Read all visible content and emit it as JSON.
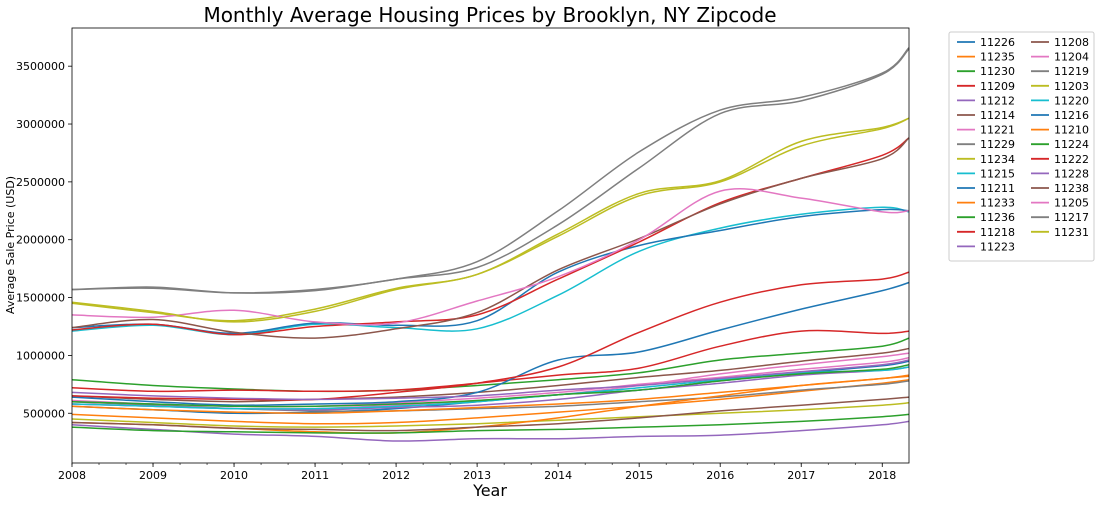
{
  "chart_data": {
    "type": "line",
    "title": "Monthly Average Housing Prices by Brooklyn, NY Zipcode",
    "xlabel": "Year",
    "ylabel": "Average Sale Price (USD)",
    "xlim": [
      2008.0,
      2018.33
    ],
    "ylim": [
      70000,
      3830000
    ],
    "x_ticks": [
      "2008",
      "2009",
      "2010",
      "2011",
      "2012",
      "2013",
      "2014",
      "2015",
      "2016",
      "2017",
      "2018"
    ],
    "y_ticks": [
      "500000",
      "1000000",
      "1500000",
      "2000000",
      "2500000",
      "3000000",
      "3500000"
    ],
    "grid": false,
    "legend_position": "outside-right",
    "series": [
      {
        "name": "11226",
        "color": "#1f77b4",
        "x": [
          2008,
          2009,
          2010,
          2011,
          2012,
          2013,
          2014,
          2015,
          2016,
          2017,
          2018,
          2018.33
        ],
        "values": [
          560000,
          530000,
          500000,
          510000,
          540000,
          600000,
          660000,
          700000,
          780000,
          850000,
          910000,
          950000
        ]
      },
      {
        "name": "11235",
        "color": "#ff7f0e",
        "x": [
          2008,
          2009,
          2010,
          2011,
          2012,
          2013,
          2014,
          2015,
          2016,
          2017,
          2018,
          2018.33
        ],
        "values": [
          490000,
          460000,
          430000,
          410000,
          420000,
          460000,
          510000,
          560000,
          620000,
          690000,
          760000,
          790000
        ]
      },
      {
        "name": "11230",
        "color": "#2ca02c",
        "x": [
          2008,
          2009,
          2010,
          2011,
          2012,
          2013,
          2014,
          2015,
          2016,
          2017,
          2018,
          2018.33
        ],
        "values": [
          790000,
          740000,
          710000,
          690000,
          700000,
          740000,
          790000,
          850000,
          960000,
          1020000,
          1080000,
          1150000
        ]
      },
      {
        "name": "11209",
        "color": "#d62728",
        "x": [
          2008,
          2009,
          2010,
          2011,
          2012,
          2013,
          2014,
          2015,
          2016,
          2017,
          2018,
          2018.33
        ],
        "values": [
          720000,
          690000,
          700000,
          690000,
          700000,
          760000,
          830000,
          890000,
          1080000,
          1210000,
          1190000,
          1210000
        ]
      },
      {
        "name": "11212",
        "color": "#9467bd",
        "x": [
          2008,
          2009,
          2010,
          2011,
          2012,
          2013,
          2014,
          2015,
          2016,
          2017,
          2018,
          2018.33
        ],
        "values": [
          400000,
          360000,
          320000,
          300000,
          260000,
          280000,
          280000,
          300000,
          310000,
          350000,
          400000,
          430000
        ]
      },
      {
        "name": "11214",
        "color": "#8c564b",
        "x": [
          2008,
          2009,
          2010,
          2011,
          2012,
          2013,
          2014,
          2015,
          2016,
          2017,
          2018,
          2018.33
        ],
        "values": [
          650000,
          620000,
          600000,
          620000,
          640000,
          680000,
          740000,
          810000,
          870000,
          950000,
          1020000,
          1060000
        ]
      },
      {
        "name": "11221",
        "color": "#e377c2",
        "x": [
          2008,
          2009,
          2010,
          2011,
          2012,
          2013,
          2014,
          2015,
          2016,
          2017,
          2018,
          2018.33
        ],
        "values": [
          610000,
          580000,
          560000,
          560000,
          590000,
          630000,
          680000,
          750000,
          810000,
          880000,
          940000,
          980000
        ]
      },
      {
        "name": "11229",
        "color": "#7f7f7f",
        "x": [
          2008,
          2009,
          2010,
          2011,
          2012,
          2013,
          2014,
          2015,
          2016,
          2017,
          2018,
          2018.33
        ],
        "values": [
          600000,
          570000,
          540000,
          520000,
          520000,
          540000,
          560000,
          600000,
          640000,
          700000,
          750000,
          780000
        ]
      },
      {
        "name": "11234",
        "color": "#bcbd22",
        "x": [
          2008,
          2009,
          2010,
          2011,
          2012,
          2013,
          2014,
          2015,
          2016,
          2017,
          2018,
          2018.33
        ],
        "values": [
          450000,
          420000,
          390000,
          380000,
          390000,
          410000,
          440000,
          470000,
          500000,
          530000,
          570000,
          590000
        ]
      },
      {
        "name": "11215",
        "color": "#17becf",
        "x": [
          2008,
          2009,
          2010,
          2011,
          2012,
          2013,
          2014,
          2015,
          2016,
          2017,
          2018,
          2018.33
        ],
        "values": [
          1210000,
          1260000,
          1180000,
          1270000,
          1240000,
          1230000,
          1520000,
          1900000,
          2100000,
          2220000,
          2280000,
          2240000
        ]
      },
      {
        "name": "11211",
        "color": "#1f77b4",
        "x": [
          2008,
          2009,
          2010,
          2011,
          2012,
          2013,
          2014,
          2015,
          2016,
          2017,
          2018,
          2018.33
        ],
        "values": [
          640000,
          600000,
          570000,
          580000,
          600000,
          680000,
          960000,
          1030000,
          1220000,
          1400000,
          1560000,
          1630000
        ]
      },
      {
        "name": "11233",
        "color": "#ff7f0e",
        "x": [
          2008,
          2009,
          2010,
          2011,
          2012,
          2013,
          2014,
          2015,
          2016,
          2017,
          2018,
          2018.33
        ],
        "values": [
          420000,
          400000,
          370000,
          340000,
          330000,
          380000,
          460000,
          560000,
          650000,
          740000,
          800000,
          820000
        ]
      },
      {
        "name": "11236",
        "color": "#2ca02c",
        "x": [
          2008,
          2009,
          2010,
          2011,
          2012,
          2013,
          2014,
          2015,
          2016,
          2017,
          2018,
          2018.33
        ],
        "values": [
          380000,
          350000,
          340000,
          330000,
          330000,
          350000,
          360000,
          380000,
          400000,
          430000,
          470000,
          490000
        ]
      },
      {
        "name": "11218",
        "color": "#d62728",
        "x": [
          2008,
          2009,
          2010,
          2011,
          2012,
          2013,
          2014,
          2015,
          2016,
          2017,
          2018,
          2018.33
        ],
        "values": [
          650000,
          630000,
          620000,
          620000,
          680000,
          760000,
          900000,
          1200000,
          1460000,
          1610000,
          1660000,
          1720000
        ]
      },
      {
        "name": "11223",
        "color": "#9467bd",
        "x": [
          2008,
          2009,
          2010,
          2011,
          2012,
          2013,
          2014,
          2015,
          2016,
          2017,
          2018,
          2018.33
        ],
        "values": [
          580000,
          560000,
          540000,
          530000,
          550000,
          570000,
          620000,
          700000,
          760000,
          830000,
          870000,
          900000
        ]
      },
      {
        "name": "11208",
        "color": "#8c564b",
        "x": [
          2008,
          2009,
          2010,
          2011,
          2012,
          2013,
          2014,
          2015,
          2016,
          2017,
          2018,
          2018.33
        ],
        "values": [
          420000,
          400000,
          370000,
          360000,
          350000,
          380000,
          410000,
          460000,
          520000,
          570000,
          620000,
          640000
        ]
      },
      {
        "name": "11204",
        "color": "#e377c2",
        "x": [
          2008,
          2009,
          2010,
          2011,
          2012,
          2013,
          2014,
          2015,
          2016,
          2017,
          2018,
          2018.33
        ],
        "values": [
          580000,
          560000,
          540000,
          540000,
          570000,
          610000,
          660000,
          740000,
          840000,
          920000,
          990000,
          1020000
        ]
      },
      {
        "name": "11219",
        "color": "#7f7f7f",
        "x": [
          2008,
          2009,
          2010,
          2011,
          2012,
          2013,
          2014,
          2015,
          2016,
          2017,
          2018,
          2018.33
        ],
        "values": [
          1570000,
          1580000,
          1540000,
          1570000,
          1660000,
          1810000,
          2250000,
          2760000,
          3120000,
          3230000,
          3440000,
          3660000
        ]
      },
      {
        "name": "11203",
        "color": "#bcbd22",
        "x": [
          2008,
          2009,
          2010,
          2011,
          2012,
          2013,
          2014,
          2015,
          2016,
          2017,
          2018,
          2018.33
        ],
        "values": [
          1450000,
          1370000,
          1300000,
          1400000,
          1580000,
          1700000,
          2050000,
          2400000,
          2510000,
          2850000,
          2970000,
          3050000
        ]
      },
      {
        "name": "11220",
        "color": "#17becf",
        "x": [
          2008,
          2009,
          2010,
          2011,
          2012,
          2013,
          2014,
          2015,
          2016,
          2017,
          2018,
          2018.33
        ],
        "values": [
          580000,
          560000,
          540000,
          540000,
          560000,
          600000,
          660000,
          720000,
          790000,
          850000,
          870000,
          900000
        ]
      },
      {
        "name": "11216",
        "color": "#1f77b4",
        "x": [
          2008,
          2009,
          2010,
          2011,
          2012,
          2013,
          2014,
          2015,
          2016,
          2017,
          2018,
          2018.33
        ],
        "values": [
          1240000,
          1270000,
          1190000,
          1280000,
          1260000,
          1300000,
          1720000,
          1950000,
          2080000,
          2200000,
          2260000,
          2250000
        ]
      },
      {
        "name": "11210",
        "color": "#ff7f0e",
        "x": [
          2008,
          2009,
          2010,
          2011,
          2012,
          2013,
          2014,
          2015,
          2016,
          2017,
          2018,
          2018.33
        ],
        "values": [
          560000,
          530000,
          510000,
          500000,
          520000,
          550000,
          580000,
          620000,
          680000,
          740000,
          800000,
          830000
        ]
      },
      {
        "name": "11224",
        "color": "#2ca02c",
        "x": [
          2008,
          2009,
          2010,
          2011,
          2012,
          2013,
          2014,
          2015,
          2016,
          2017,
          2018,
          2018.33
        ],
        "values": [
          600000,
          580000,
          560000,
          560000,
          580000,
          610000,
          660000,
          700000,
          780000,
          840000,
          880000,
          920000
        ]
      },
      {
        "name": "11222",
        "color": "#d62728",
        "x": [
          2008,
          2009,
          2010,
          2011,
          2012,
          2013,
          2014,
          2015,
          2016,
          2017,
          2018,
          2018.33
        ],
        "values": [
          1220000,
          1270000,
          1180000,
          1250000,
          1290000,
          1350000,
          1660000,
          1980000,
          2320000,
          2530000,
          2730000,
          2880000
        ]
      },
      {
        "name": "11228",
        "color": "#9467bd",
        "x": [
          2008,
          2009,
          2010,
          2011,
          2012,
          2013,
          2014,
          2015,
          2016,
          2017,
          2018,
          2018.33
        ],
        "values": [
          680000,
          650000,
          630000,
          620000,
          630000,
          650000,
          700000,
          740000,
          800000,
          860000,
          920000,
          960000
        ]
      },
      {
        "name": "11238",
        "color": "#8c564b",
        "x": [
          2008,
          2009,
          2010,
          2011,
          2012,
          2013,
          2014,
          2015,
          2016,
          2017,
          2018,
          2018.33
        ],
        "values": [
          1240000,
          1310000,
          1200000,
          1150000,
          1230000,
          1370000,
          1740000,
          2010000,
          2310000,
          2530000,
          2700000,
          2880000
        ]
      },
      {
        "name": "11205",
        "color": "#e377c2",
        "x": [
          2008,
          2009,
          2010,
          2011,
          2012,
          2013,
          2014,
          2015,
          2016,
          2017,
          2018,
          2018.33
        ],
        "values": [
          1350000,
          1330000,
          1390000,
          1290000,
          1280000,
          1470000,
          1680000,
          2000000,
          2420000,
          2360000,
          2240000,
          2250000
        ]
      },
      {
        "name": "11217",
        "color": "#7f7f7f",
        "x": [
          2008,
          2009,
          2010,
          2011,
          2012,
          2013,
          2014,
          2015,
          2016,
          2017,
          2018,
          2018.33
        ],
        "values": [
          1570000,
          1590000,
          1540000,
          1560000,
          1660000,
          1760000,
          2130000,
          2620000,
          3090000,
          3200000,
          3430000,
          3650000
        ]
      },
      {
        "name": "11231",
        "color": "#bcbd22",
        "x": [
          2008,
          2009,
          2010,
          2011,
          2012,
          2013,
          2014,
          2015,
          2016,
          2017,
          2018,
          2018.33
        ],
        "values": [
          1460000,
          1380000,
          1290000,
          1380000,
          1570000,
          1700000,
          2030000,
          2380000,
          2500000,
          2810000,
          2960000,
          3050000
        ]
      }
    ]
  }
}
